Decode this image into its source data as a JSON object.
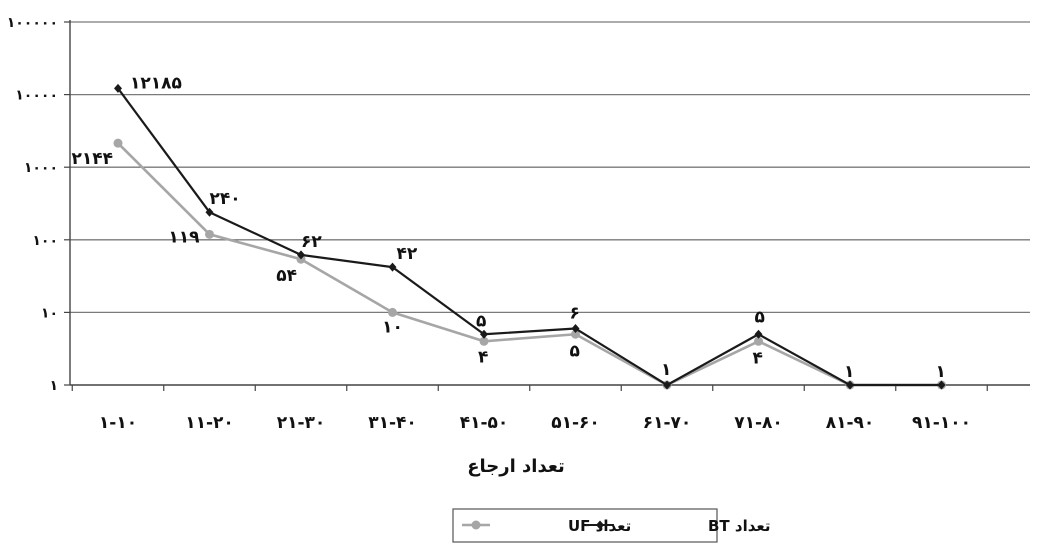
{
  "chart_data": {
    "type": "line",
    "yscale": "log",
    "ylim": [
      1,
      100000
    ],
    "grid": true,
    "legend_position": "bottom-center",
    "categories": [
      "1-10",
      "11-20",
      "21-30",
      "31-40",
      "41-50",
      "51-60",
      "61-70",
      "71-80",
      "81-90",
      "91-100"
    ],
    "category_labels": [
      "۱-۱۰",
      "۱۱-۲۰",
      "۲۱-۳۰",
      "۳۱-۴۰",
      "۴۱-۵۰",
      "۵۱-۶۰",
      "۶۱-۷۰",
      "۷۱-۸۰",
      "۸۱-۹۰",
      "۹۱-۱۰۰"
    ],
    "yticks": [
      1,
      10,
      100,
      1000,
      10000,
      100000
    ],
    "ytick_labels": [
      "۱",
      "۱۰",
      "۱۰۰",
      "۱۰۰۰",
      "۱۰۰۰۰",
      "۱۰۰۰۰۰"
    ],
    "xlabel": "تعداد ارجاع",
    "ylabel": "",
    "series": [
      {
        "name": "تعداد BT",
        "color": "#1a1a1a",
        "marker": "diamond",
        "values": [
          12185,
          240,
          62,
          42,
          5,
          6,
          1,
          5,
          1,
          1
        ],
        "labels": [
          "۱۲۱۸۵",
          "۲۴۰",
          "۶۲",
          "۴۲",
          "۵",
          "۶",
          "۱",
          "۵",
          "۱",
          "۱"
        ]
      },
      {
        "name": "تعداد UF",
        "color": "#a6a6a6",
        "marker": "circle",
        "values": [
          2144,
          119,
          54,
          10,
          4,
          5,
          1,
          4,
          1,
          1
        ],
        "labels": [
          "۲۱۴۴",
          "۱۱۹",
          "۵۴",
          "۱۰",
          "۴",
          "۵",
          "",
          "۴",
          "",
          ""
        ]
      }
    ]
  }
}
